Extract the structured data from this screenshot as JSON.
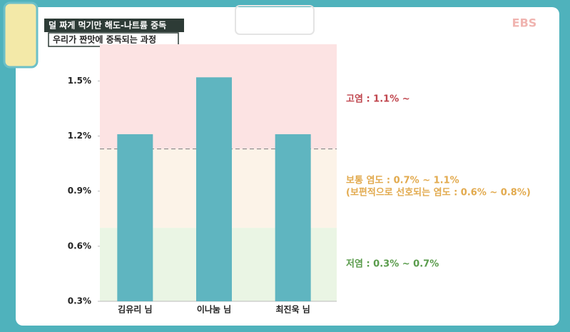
{
  "header": {
    "title": "덜 짜게 먹기만 해도-나트륨 중독",
    "subtitle": "우리가 짠맛에 중독되는 과정",
    "logo": "EBS"
  },
  "chart_data": {
    "type": "bar",
    "categories": [
      "김유리 님",
      "이나눔 님",
      "최진욱 님"
    ],
    "values": [
      1.21,
      1.52,
      1.21
    ],
    "color": "#5fb5c0",
    "ylim": [
      0.3,
      1.7
    ],
    "yticks": [
      {
        "value": 0.3,
        "label": "0.3%"
      },
      {
        "value": 0.6,
        "label": "0.6%"
      },
      {
        "value": 0.9,
        "label": "0.9%"
      },
      {
        "value": 1.2,
        "label": "1.2%"
      },
      {
        "value": 1.5,
        "label": "1.5%"
      }
    ],
    "threshold": 1.13,
    "zones": [
      {
        "from": 1.13,
        "to": 1.7,
        "color": "#fce3e3",
        "label": "고염 : 1.1% ~",
        "label_color": "#c0464e"
      },
      {
        "from": 0.7,
        "to": 1.13,
        "color": "#fcf3e8",
        "label": "보통 염도 : 0.7% ~ 1.1%",
        "note": "(보편적으로 선호되는 염도 : 0.6% ~ 0.8%)",
        "label_color": "#e2aa4e"
      },
      {
        "from": 0.3,
        "to": 0.7,
        "color": "#eaf5e4",
        "label": "저염 : 0.3% ~ 0.7%",
        "label_color": "#5a9c4c"
      }
    ]
  }
}
